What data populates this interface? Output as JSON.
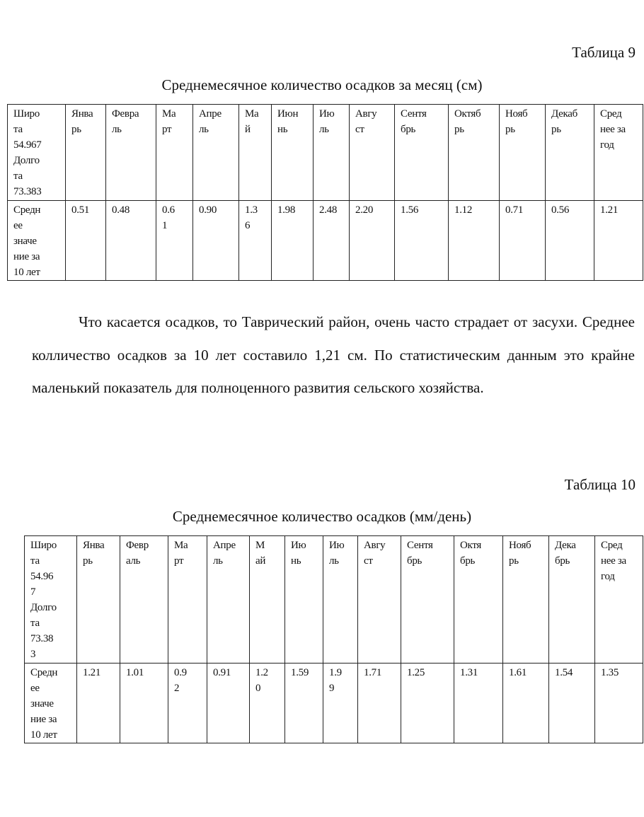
{
  "table9": {
    "caption": "Таблица 9",
    "title": "Среднемесячное количество осадков за месяц (см)",
    "header": [
      "Широ\nта\n54.967\nДолго\nта\n73.383",
      "Янва\nрь",
      "Февра\nль",
      "Ма\nрт",
      "Апре\nль",
      "Ма\nй",
      "Июн\nнь",
      "Ию\nль",
      "Авгу\nст",
      "Сентя\nбрь",
      "Октяб\nрь",
      "Нояб\nрь",
      "Декаб\nрь",
      "Сред\nнее за\nгод"
    ],
    "row": [
      "Средн\nее\nзначе\nние за\n10 лет",
      "0.51",
      "0.48",
      "0.6\n1",
      "0.90",
      "1.3\n6",
      "1.98",
      "2.48",
      "2.20",
      "1.56",
      "1.12",
      "0.71",
      "0.56",
      "1.21"
    ]
  },
  "paragraph": "Что касается осадков, то Таврический район, очень часто страдает от засухи. Среднее колличество осадков за 10 лет составило 1,21 см. По статистическим данным это крайне маленький показатель для полноценного развития сельского хозяйства.",
  "table10": {
    "caption": "Таблица 10",
    "title": "Среднемесячное количество осадков (мм/день)",
    "header": [
      "Широ\nта\n54.96\n7\nДолго\nта\n73.38\n3",
      "Янва\nрь",
      "Февр\nаль",
      "Ма\nрт",
      "Апре\nль",
      "М\nай",
      "Ию\nнь",
      "Ию\nль",
      "Авгу\nст",
      "Сентя\nбрь",
      "Октя\nбрь",
      "Нояб\nрь",
      "Дека\nбрь",
      "Сред\nнее за\nгод"
    ],
    "row": [
      "Средн\nее\nзначе\nние за\n10 лет",
      "1.21",
      "1.01",
      "0.9\n2",
      "0.91",
      "1.2\n0",
      "1.59",
      "1.9\n9",
      "1.71",
      "1.25",
      "1.31",
      "1.61",
      "1.54",
      "1.35"
    ]
  }
}
